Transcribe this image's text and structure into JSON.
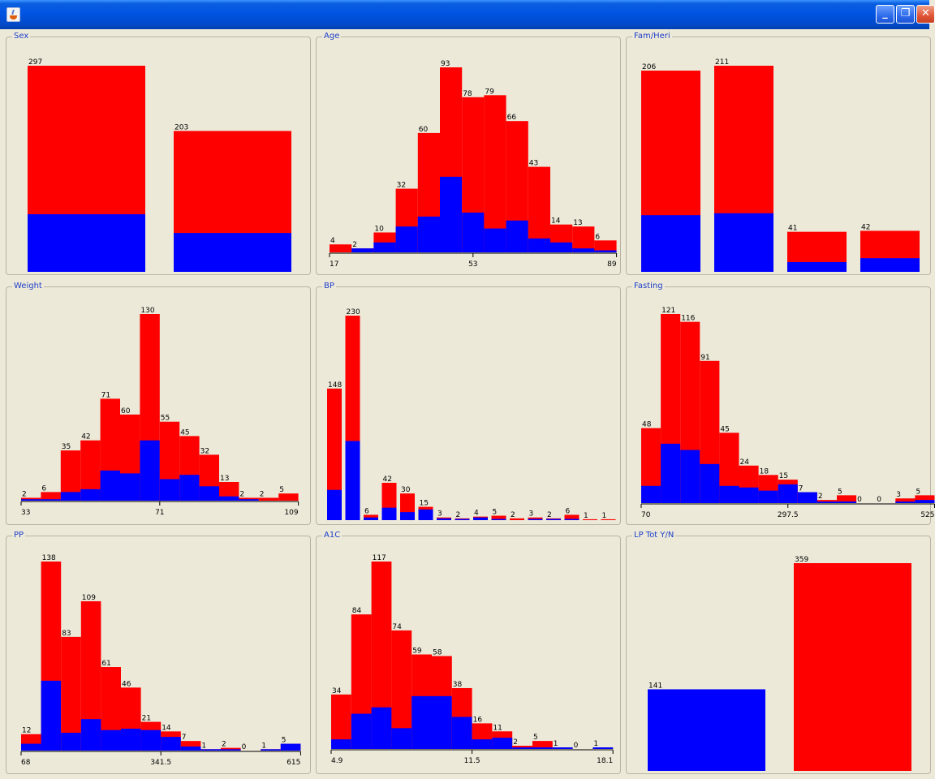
{
  "colors": {
    "top": "#FF0000",
    "bottom": "#0000FF"
  },
  "window": {
    "title": "",
    "icon": "java-cup-icon",
    "buttons": [
      {
        "icon": "minimize-icon",
        "glyph": "_"
      },
      {
        "icon": "restore-icon",
        "glyph": "❐"
      },
      {
        "icon": "close-icon",
        "glyph": "✕"
      }
    ]
  },
  "panel_titles": [
    "Sex",
    "Age",
    "Fam/Heri",
    "Weight",
    "BP",
    "Fasting",
    "PP",
    "A1C",
    "LP Tot  Y/N"
  ],
  "chart_data": [
    {
      "type": "bar",
      "title": "Sex",
      "axis": false,
      "categories": [
        "",
        ""
      ],
      "values": [
        297,
        203
      ],
      "series": [
        {
          "name": "",
          "color": "#FF0000",
          "values": [
            297,
            203
          ]
        },
        {
          "name": "",
          "color": "#0000FF",
          "values": [
            83,
            56
          ]
        }
      ],
      "ylim": [
        0,
        297
      ]
    },
    {
      "type": "bar",
      "title": "Age",
      "axis": true,
      "histogram": true,
      "values": [
        4,
        2,
        10,
        32,
        60,
        93,
        78,
        79,
        66,
        43,
        14,
        13,
        6
      ],
      "series": [
        {
          "name": "",
          "color": "#FF0000",
          "values": [
            4,
            2,
            10,
            32,
            60,
            93,
            78,
            79,
            66,
            43,
            14,
            13,
            6
          ]
        },
        {
          "name": "",
          "color": "#0000FF",
          "values": [
            0,
            2,
            5,
            13,
            18,
            38,
            20,
            12,
            16,
            7,
            5,
            2,
            1
          ]
        }
      ],
      "ticks": [
        "17",
        "53",
        "89"
      ],
      "ylim": [
        0,
        93
      ]
    },
    {
      "type": "bar",
      "title": "Fam/Heri",
      "axis": false,
      "categories": [
        "",
        "",
        "",
        ""
      ],
      "values": [
        206,
        211,
        41,
        42
      ],
      "series": [
        {
          "name": "",
          "color": "#FF0000",
          "values": [
            206,
            211,
            41,
            42
          ]
        },
        {
          "name": "",
          "color": "#0000FF",
          "values": [
            58,
            60,
            10,
            14
          ]
        }
      ],
      "ylim": [
        0,
        211
      ]
    },
    {
      "type": "bar",
      "title": "Weight",
      "axis": true,
      "histogram": true,
      "values": [
        2,
        6,
        35,
        42,
        71,
        60,
        130,
        55,
        45,
        32,
        13,
        2,
        2,
        5
      ],
      "series": [
        {
          "name": "",
          "color": "#FF0000",
          "values": [
            2,
            6,
            35,
            42,
            71,
            60,
            130,
            55,
            45,
            32,
            13,
            2,
            2,
            5
          ]
        },
        {
          "name": "",
          "color": "#0000FF",
          "values": [
            1,
            1,
            6,
            8,
            21,
            19,
            42,
            15,
            18,
            10,
            3,
            1,
            0,
            0
          ]
        }
      ],
      "ticks": [
        "33",
        "71",
        "109"
      ],
      "ylim": [
        0,
        130
      ]
    },
    {
      "type": "bar",
      "title": "BP",
      "axis": false,
      "values": [
        148,
        230,
        6,
        42,
        30,
        15,
        3,
        2,
        4,
        5,
        2,
        3,
        2,
        6,
        1,
        1
      ],
      "series": [
        {
          "name": "",
          "color": "#FF0000",
          "values": [
            148,
            230,
            6,
            42,
            30,
            15,
            3,
            2,
            4,
            5,
            2,
            3,
            2,
            6,
            1,
            1
          ]
        },
        {
          "name": "",
          "color": "#0000FF",
          "values": [
            34,
            89,
            3,
            14,
            9,
            12,
            2,
            1,
            3,
            1,
            0,
            1,
            1,
            1,
            0,
            0
          ]
        }
      ],
      "ylim": [
        0,
        230
      ]
    },
    {
      "type": "bar",
      "title": "Fasting",
      "axis": true,
      "histogram": true,
      "values": [
        48,
        121,
        116,
        91,
        45,
        24,
        18,
        15,
        7,
        2,
        5,
        0,
        0,
        3,
        5
      ],
      "series": [
        {
          "name": "",
          "color": "#FF0000",
          "values": [
            48,
            121,
            116,
            91,
            45,
            24,
            18,
            15,
            7,
            2,
            5,
            0,
            0,
            3,
            5
          ]
        },
        {
          "name": "",
          "color": "#0000FF",
          "values": [
            11,
            38,
            34,
            25,
            11,
            10,
            8,
            12,
            7,
            1,
            1,
            0,
            0,
            1,
            2
          ]
        }
      ],
      "ticks": [
        "70",
        "297.5",
        "525"
      ],
      "ylim": [
        0,
        121
      ]
    },
    {
      "type": "bar",
      "title": "PP",
      "axis": true,
      "histogram": true,
      "values": [
        12,
        138,
        83,
        109,
        61,
        46,
        21,
        14,
        7,
        1,
        2,
        0,
        1,
        5
      ],
      "series": [
        {
          "name": "",
          "color": "#FF0000",
          "values": [
            12,
            138,
            83,
            109,
            61,
            46,
            21,
            14,
            7,
            1,
            2,
            0,
            1,
            5
          ]
        },
        {
          "name": "",
          "color": "#0000FF",
          "values": [
            5,
            51,
            13,
            23,
            15,
            16,
            15,
            10,
            3,
            1,
            1,
            0,
            1,
            5
          ]
        }
      ],
      "ticks": [
        "68",
        "341.5",
        "615"
      ],
      "ylim": [
        0,
        138
      ]
    },
    {
      "type": "bar",
      "title": "A1C",
      "axis": true,
      "histogram": true,
      "values": [
        34,
        84,
        117,
        74,
        59,
        58,
        38,
        16,
        11,
        2,
        5,
        1,
        0,
        1
      ],
      "series": [
        {
          "name": "",
          "color": "#FF0000",
          "values": [
            34,
            84,
            117,
            74,
            59,
            58,
            38,
            16,
            11,
            2,
            5,
            1,
            0,
            1
          ]
        },
        {
          "name": "",
          "color": "#0000FF",
          "values": [
            6,
            22,
            26,
            13,
            33,
            33,
            20,
            6,
            7,
            1,
            1,
            1,
            0,
            1
          ]
        }
      ],
      "ticks": [
        "4.9",
        "11.5",
        "18.1"
      ],
      "ylim": [
        0,
        117
      ]
    },
    {
      "type": "bar",
      "title": "LP Tot  Y/N",
      "axis": false,
      "categories": [
        "",
        ""
      ],
      "values": [
        141,
        359
      ],
      "series": [
        {
          "name": "",
          "color": "#FF0000",
          "values": [
            0,
            359
          ]
        },
        {
          "name": "",
          "color": "#0000FF",
          "values": [
            141,
            0
          ]
        }
      ],
      "ylim": [
        0,
        359
      ]
    }
  ]
}
